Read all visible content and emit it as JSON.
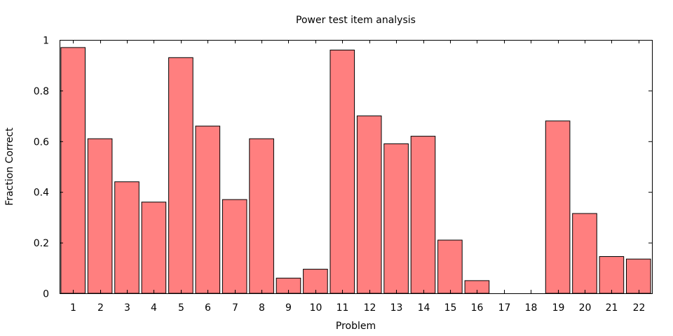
{
  "chart_data": {
    "type": "bar",
    "title": "Power test item analysis",
    "xlabel": "Problem",
    "ylabel": "Fraction Correct",
    "categories": [
      "1",
      "2",
      "3",
      "4",
      "5",
      "6",
      "7",
      "8",
      "9",
      "10",
      "11",
      "12",
      "13",
      "14",
      "15",
      "16",
      "17",
      "18",
      "19",
      "20",
      "21",
      "22"
    ],
    "values": [
      0.97,
      0.61,
      0.44,
      0.36,
      0.93,
      0.66,
      0.37,
      0.61,
      0.06,
      0.095,
      0.96,
      0.7,
      0.59,
      0.62,
      0.21,
      0.05,
      0.0,
      0.0,
      0.68,
      0.315,
      0.145,
      0.135
    ],
    "ylim": [
      0,
      1
    ],
    "yticks": [
      "0",
      "0.2",
      "0.4",
      "0.6",
      "0.8",
      "1"
    ],
    "bar_color": "#ff7f7f",
    "grid": false,
    "legend": "none"
  }
}
